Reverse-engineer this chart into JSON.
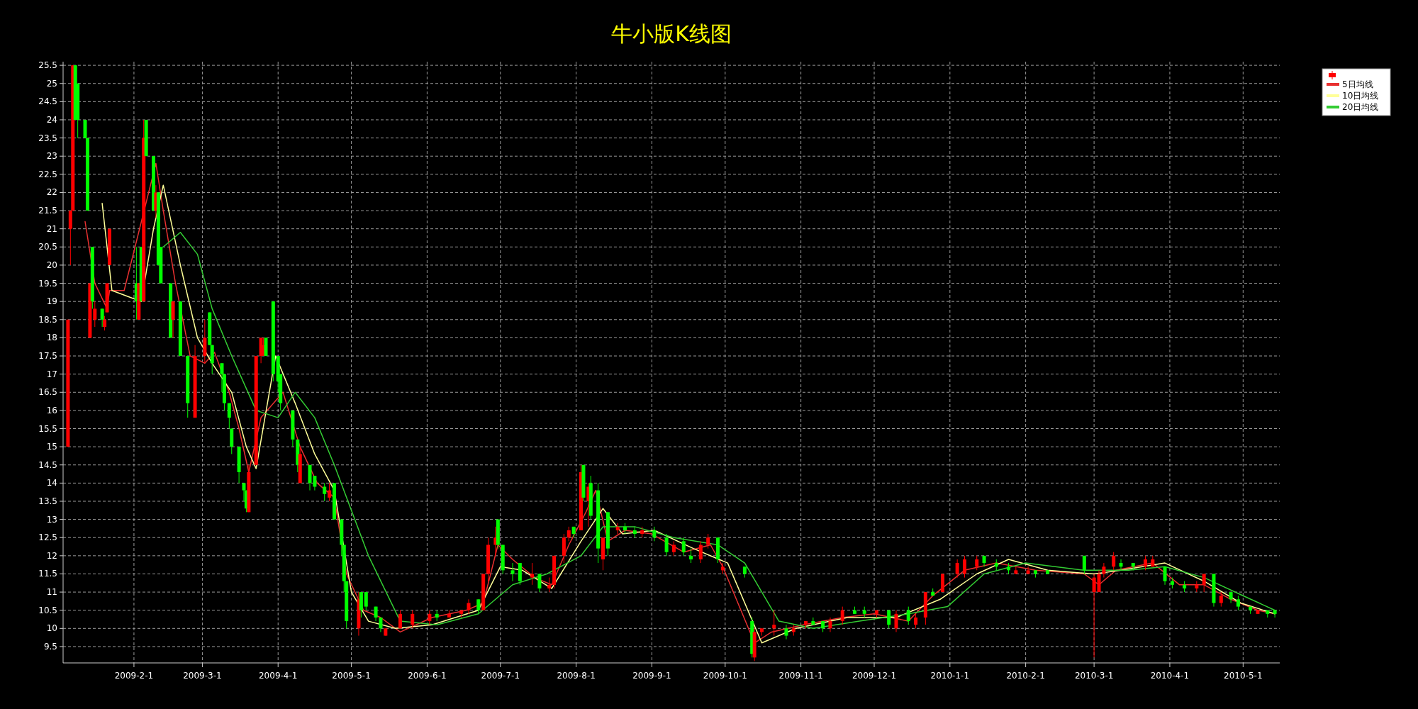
{
  "chart_data": {
    "type": "candlestick",
    "title": "牛小版K线图",
    "x": [
      "2009-01-05",
      "2009-01-06",
      "2009-01-07",
      "2009-01-08",
      "2009-01-09",
      "2009-01-12",
      "2009-01-13",
      "2009-01-14",
      "2009-01-15",
      "2009-01-16",
      "2009-01-19",
      "2009-01-20",
      "2009-01-21",
      "2009-01-22",
      "2009-02-02",
      "2009-02-03",
      "2009-02-04",
      "2009-02-05",
      "2009-02-06",
      "2009-02-09",
      "2009-02-10",
      "2009-02-11",
      "2009-02-12",
      "2009-02-16",
      "2009-02-17",
      "2009-02-20",
      "2009-02-23",
      "2009-02-26",
      "2009-03-02",
      "2009-03-04",
      "2009-03-05",
      "2009-03-09",
      "2009-03-10",
      "2009-03-12",
      "2009-03-13",
      "2009-03-16",
      "2009-03-18",
      "2009-03-19",
      "2009-03-20",
      "2009-03-23",
      "2009-03-25",
      "2009-03-26",
      "2009-03-27",
      "2009-03-30",
      "2009-04-01",
      "2009-04-02",
      "2009-04-07",
      "2009-04-09",
      "2009-04-10",
      "2009-04-14",
      "2009-04-16",
      "2009-04-20",
      "2009-04-22",
      "2009-04-24",
      "2009-04-27",
      "2009-04-28",
      "2009-04-29",
      "2009-05-04",
      "2009-05-05",
      "2009-05-07",
      "2009-05-11",
      "2009-05-13",
      "2009-05-15",
      "2009-05-21",
      "2009-05-26",
      "2009-06-02",
      "2009-06-05",
      "2009-06-10",
      "2009-06-15",
      "2009-06-18",
      "2009-06-22",
      "2009-06-24",
      "2009-06-26",
      "2009-06-29",
      "2009-06-30",
      "2009-07-02",
      "2009-07-06",
      "2009-07-09",
      "2009-07-14",
      "2009-07-17",
      "2009-07-21",
      "2009-07-23",
      "2009-07-27",
      "2009-07-29",
      "2009-07-31",
      "2009-08-03",
      "2009-08-04",
      "2009-08-06",
      "2009-08-07",
      "2009-08-10",
      "2009-08-12",
      "2009-08-14",
      "2009-08-18",
      "2009-08-21",
      "2009-08-25",
      "2009-08-28",
      "2009-09-02",
      "2009-09-07",
      "2009-09-10",
      "2009-09-14",
      "2009-09-17",
      "2009-09-21",
      "2009-09-24",
      "2009-09-28",
      "2009-09-30",
      "2009-10-09",
      "2009-10-12",
      "2009-10-13",
      "2009-10-16",
      "2009-10-21",
      "2009-10-26",
      "2009-10-29",
      "2009-11-03",
      "2009-11-06",
      "2009-11-10",
      "2009-11-13",
      "2009-11-18",
      "2009-11-23",
      "2009-11-27",
      "2009-12-02",
      "2009-12-07",
      "2009-12-10",
      "2009-12-15",
      "2009-12-18",
      "2009-12-22",
      "2009-12-25",
      "2009-12-29",
      "2010-01-04",
      "2010-01-07",
      "2010-01-12",
      "2010-01-15",
      "2010-01-20",
      "2010-01-25",
      "2010-01-28",
      "2010-02-02",
      "2010-02-05",
      "2010-02-10",
      "2010-02-25",
      "2010-03-01",
      "2010-03-03",
      "2010-03-05",
      "2010-03-09",
      "2010-03-12",
      "2010-03-17",
      "2010-03-22",
      "2010-03-25",
      "2010-03-30",
      "2010-04-02",
      "2010-04-07",
      "2010-04-12",
      "2010-04-15",
      "2010-04-19",
      "2010-04-22",
      "2010-04-26",
      "2010-04-29",
      "2010-05-04",
      "2010-05-07",
      "2010-05-11",
      "2010-05-14"
    ],
    "ohlc": [
      [
        15.0,
        18.5,
        15.0,
        18.5
      ],
      [
        21.0,
        21.5,
        20.0,
        21.5
      ],
      [
        21.5,
        25.5,
        21.5,
        25.5
      ],
      [
        25.5,
        25.5,
        24.0,
        24.0
      ],
      [
        25.0,
        25.0,
        23.5,
        24.0
      ],
      [
        24.0,
        24.0,
        23.5,
        23.5
      ],
      [
        23.5,
        23.5,
        21.5,
        21.5
      ],
      [
        18.0,
        19.5,
        18.0,
        19.5
      ],
      [
        20.5,
        20.5,
        18.8,
        19.0
      ],
      [
        18.5,
        19.0,
        18.3,
        18.8
      ],
      [
        18.8,
        18.8,
        18.3,
        18.5
      ],
      [
        18.3,
        18.6,
        18.2,
        18.5
      ],
      [
        18.7,
        19.5,
        18.7,
        19.5
      ],
      [
        20.0,
        21.0,
        20.0,
        21.0
      ],
      [
        19.5,
        20.5,
        18.5,
        19.0
      ],
      [
        18.5,
        19.5,
        18.5,
        19.5
      ],
      [
        20.5,
        20.5,
        19.0,
        19.0
      ],
      [
        19.0,
        24.0,
        19.0,
        23.5
      ],
      [
        24.0,
        24.0,
        23.0,
        23.0
      ],
      [
        23.0,
        23.0,
        21.5,
        21.5
      ],
      [
        21.5,
        22.2,
        21.3,
        22.0
      ],
      [
        22.0,
        22.0,
        20.0,
        20.0
      ],
      [
        20.5,
        20.5,
        19.5,
        19.5
      ],
      [
        19.5,
        19.5,
        18.0,
        18.0
      ],
      [
        18.5,
        19.0,
        18.0,
        19.0
      ],
      [
        19.0,
        19.0,
        17.5,
        17.5
      ],
      [
        17.5,
        17.5,
        15.8,
        16.2
      ],
      [
        15.8,
        17.8,
        15.8,
        17.5
      ],
      [
        17.5,
        18.5,
        17.3,
        18.0
      ],
      [
        18.7,
        18.7,
        17.8,
        17.8
      ],
      [
        17.8,
        17.8,
        17.0,
        17.3
      ],
      [
        17.3,
        17.3,
        16.5,
        17.0
      ],
      [
        17.0,
        17.0,
        16.0,
        16.2
      ],
      [
        16.2,
        16.2,
        15.5,
        15.8
      ],
      [
        15.5,
        15.5,
        14.8,
        15.0
      ],
      [
        15.0,
        15.0,
        14.0,
        14.3
      ],
      [
        14.0,
        14.0,
        13.5,
        13.8
      ],
      [
        13.8,
        13.8,
        13.2,
        13.3
      ],
      [
        13.2,
        14.5,
        13.2,
        14.3
      ],
      [
        14.5,
        17.5,
        14.5,
        17.5
      ],
      [
        17.5,
        18.0,
        17.3,
        18.0
      ],
      [
        17.5,
        18.0,
        17.5,
        17.8
      ],
      [
        18.0,
        18.0,
        17.5,
        17.5
      ],
      [
        19.0,
        19.0,
        16.8,
        17.0
      ],
      [
        17.5,
        17.5,
        16.5,
        16.8
      ],
      [
        17.0,
        17.0,
        16.0,
        16.2
      ],
      [
        16.0,
        16.0,
        15.0,
        15.2
      ],
      [
        15.2,
        15.2,
        14.3,
        14.5
      ],
      [
        14.0,
        15.0,
        14.0,
        14.8
      ],
      [
        14.5,
        14.5,
        13.8,
        14.0
      ],
      [
        14.2,
        14.2,
        13.8,
        13.9
      ],
      [
        13.9,
        14.0,
        13.5,
        13.7
      ],
      [
        13.6,
        14.0,
        13.5,
        13.8
      ],
      [
        14.0,
        14.0,
        13.0,
        13.0
      ],
      [
        13.0,
        13.0,
        12.0,
        12.3
      ],
      [
        12.3,
        12.3,
        11.0,
        11.3
      ],
      [
        11.3,
        11.3,
        10.0,
        10.2
      ],
      [
        10.0,
        11.0,
        9.8,
        10.8
      ],
      [
        11.0,
        11.0,
        10.3,
        10.5
      ],
      [
        11.0,
        11.0,
        10.5,
        10.6
      ],
      [
        10.6,
        10.6,
        10.2,
        10.3
      ],
      [
        10.3,
        10.3,
        9.9,
        10.0
      ],
      [
        9.8,
        10.0,
        9.8,
        10.0
      ],
      [
        10.0,
        10.5,
        10.0,
        10.4
      ],
      [
        10.1,
        10.5,
        10.0,
        10.4
      ],
      [
        10.2,
        10.5,
        10.1,
        10.4
      ],
      [
        10.4,
        10.5,
        10.2,
        10.3
      ],
      [
        10.3,
        10.5,
        10.3,
        10.4
      ],
      [
        10.4,
        10.5,
        10.3,
        10.5
      ],
      [
        10.5,
        10.8,
        10.4,
        10.7
      ],
      [
        10.8,
        10.8,
        10.4,
        10.5
      ],
      [
        10.5,
        11.5,
        10.5,
        11.5
      ],
      [
        11.5,
        12.5,
        11.3,
        12.3
      ],
      [
        12.3,
        12.8,
        12.0,
        12.5
      ],
      [
        13.0,
        13.0,
        12.2,
        12.3
      ],
      [
        12.3,
        12.3,
        11.5,
        11.6
      ],
      [
        11.6,
        11.8,
        11.3,
        11.5
      ],
      [
        11.8,
        11.8,
        11.2,
        11.3
      ],
      [
        11.4,
        11.8,
        11.2,
        11.5
      ],
      [
        11.5,
        11.5,
        11.0,
        11.1
      ],
      [
        11.1,
        11.4,
        11.0,
        11.2
      ],
      [
        11.2,
        12.0,
        11.1,
        12.0
      ],
      [
        12.0,
        12.6,
        11.8,
        12.5
      ],
      [
        12.5,
        12.8,
        12.4,
        12.7
      ],
      [
        12.8,
        12.8,
        12.5,
        12.6
      ],
      [
        12.7,
        14.5,
        12.7,
        14.3
      ],
      [
        14.5,
        14.5,
        13.5,
        13.6
      ],
      [
        13.5,
        14.0,
        12.8,
        13.9
      ],
      [
        14.0,
        14.2,
        13.0,
        13.1
      ],
      [
        13.8,
        14.0,
        11.8,
        12.2
      ],
      [
        11.9,
        12.5,
        11.6,
        12.5
      ],
      [
        13.2,
        13.2,
        12.0,
        12.2
      ],
      [
        12.7,
        12.9,
        12.6,
        12.8
      ],
      [
        12.8,
        12.9,
        12.6,
        12.7
      ],
      [
        12.7,
        12.8,
        12.5,
        12.6
      ],
      [
        12.6,
        12.8,
        12.5,
        12.7
      ],
      [
        12.7,
        12.8,
        12.4,
        12.5
      ],
      [
        12.5,
        12.6,
        12.0,
        12.1
      ],
      [
        12.1,
        12.4,
        12.0,
        12.3
      ],
      [
        12.4,
        12.5,
        12.0,
        12.1
      ],
      [
        12.0,
        12.2,
        11.8,
        11.9
      ],
      [
        11.9,
        12.4,
        11.8,
        12.3
      ],
      [
        12.3,
        12.6,
        12.2,
        12.5
      ],
      [
        12.5,
        12.5,
        11.8,
        11.9
      ],
      [
        11.6,
        11.8,
        11.5,
        11.7
      ],
      [
        11.7,
        11.7,
        11.4,
        11.5
      ],
      [
        10.2,
        10.3,
        9.2,
        9.3
      ],
      [
        9.2,
        10.0,
        9.1,
        9.9
      ],
      [
        9.9,
        10.0,
        9.8,
        10.0
      ],
      [
        10.0,
        10.5,
        9.8,
        10.1
      ],
      [
        10.0,
        10.1,
        9.7,
        9.8
      ],
      [
        9.9,
        10.1,
        9.8,
        10.0
      ],
      [
        10.1,
        10.2,
        10.0,
        10.2
      ],
      [
        10.2,
        10.3,
        10.1,
        10.1
      ],
      [
        10.2,
        10.2,
        9.9,
        10.0
      ],
      [
        10.0,
        10.3,
        9.9,
        10.2
      ],
      [
        10.2,
        10.6,
        10.1,
        10.5
      ],
      [
        10.5,
        10.6,
        10.4,
        10.4
      ],
      [
        10.5,
        10.6,
        10.3,
        10.4
      ],
      [
        10.4,
        10.5,
        10.3,
        10.5
      ],
      [
        10.5,
        10.5,
        10.0,
        10.1
      ],
      [
        10.0,
        10.5,
        9.9,
        10.4
      ],
      [
        10.5,
        10.6,
        10.1,
        10.2
      ],
      [
        10.1,
        10.4,
        10.0,
        10.3
      ],
      [
        10.3,
        11.0,
        10.1,
        11.0
      ],
      [
        11.0,
        11.1,
        10.9,
        10.9
      ],
      [
        11.0,
        11.5,
        11.0,
        11.5
      ],
      [
        11.5,
        11.9,
        11.4,
        11.8
      ],
      [
        11.5,
        12.0,
        11.4,
        11.9
      ],
      [
        11.7,
        12.0,
        11.6,
        11.9
      ],
      [
        12.0,
        12.0,
        11.7,
        11.8
      ],
      [
        11.8,
        11.9,
        11.6,
        11.7
      ],
      [
        11.7,
        11.8,
        11.5,
        11.6
      ],
      [
        11.5,
        11.7,
        11.5,
        11.6
      ],
      [
        11.5,
        11.7,
        11.5,
        11.6
      ],
      [
        11.6,
        11.6,
        11.4,
        11.5
      ],
      [
        11.6,
        11.6,
        11.5,
        11.5
      ],
      [
        12.0,
        12.0,
        11.5,
        11.6
      ],
      [
        11.0,
        11.5,
        9.2,
        11.4
      ],
      [
        11.0,
        11.6,
        11.0,
        11.5
      ],
      [
        11.5,
        11.8,
        11.4,
        11.7
      ],
      [
        11.7,
        12.1,
        11.6,
        12.0
      ],
      [
        11.8,
        11.9,
        11.6,
        11.7
      ],
      [
        11.8,
        11.8,
        11.6,
        11.7
      ],
      [
        11.7,
        12.0,
        11.6,
        11.9
      ],
      [
        11.7,
        12.0,
        11.7,
        11.9
      ],
      [
        11.7,
        11.7,
        11.2,
        11.3
      ],
      [
        11.3,
        11.4,
        11.1,
        11.2
      ],
      [
        11.2,
        11.3,
        11.0,
        11.1
      ],
      [
        11.1,
        11.3,
        11.0,
        11.2
      ],
      [
        11.2,
        11.5,
        11.0,
        11.5
      ],
      [
        11.5,
        11.5,
        10.6,
        10.7
      ],
      [
        10.7,
        11.0,
        10.6,
        10.9
      ],
      [
        11.0,
        11.0,
        10.7,
        10.8
      ],
      [
        10.8,
        10.9,
        10.5,
        10.6
      ],
      [
        10.6,
        10.6,
        10.4,
        10.5
      ],
      [
        10.4,
        10.5,
        10.4,
        10.5
      ],
      [
        10.5,
        10.5,
        10.3,
        10.4
      ],
      [
        10.5,
        10.5,
        10.3,
        10.4
      ]
    ],
    "colors": [
      "#ff0000",
      "#ff0000",
      "#ff0000",
      "#00ff00",
      "#00ff00",
      "#00ff00",
      "#00ff00",
      "#ff0000",
      "#00ff00",
      "#ff0000",
      "#00ff00",
      "#ff0000",
      "#ff0000",
      "#ff0000",
      "#00ff00",
      "#ff0000",
      "#00ff00",
      "#ff0000",
      "#00ff00",
      "#00ff00",
      "#ff0000",
      "#00ff00",
      "#00ff00",
      "#00ff00",
      "#ff0000",
      "#00ff00",
      "#00ff00",
      "#ff0000",
      "#ff0000",
      "#00ff00",
      "#00ff00",
      "#00ff00",
      "#00ff00",
      "#00ff00",
      "#00ff00",
      "#00ff00",
      "#00ff00",
      "#00ff00",
      "#ff0000",
      "#ff0000",
      "#ff0000",
      "#ff0000",
      "#00ff00",
      "#00ff00",
      "#00ff00",
      "#00ff00",
      "#00ff00",
      "#00ff00",
      "#ff0000",
      "#00ff00",
      "#00ff00",
      "#00ff00",
      "#ff0000",
      "#00ff00",
      "#00ff00",
      "#00ff00",
      "#00ff00",
      "#ff0000",
      "#00ff00",
      "#00ff00",
      "#00ff00",
      "#00ff00",
      "#ff0000",
      "#ff0000",
      "#ff0000",
      "#ff0000",
      "#00ff00",
      "#ff0000",
      "#ff0000",
      "#ff0000",
      "#00ff00",
      "#ff0000",
      "#ff0000",
      "#ff0000",
      "#00ff00",
      "#00ff00",
      "#00ff00",
      "#00ff00",
      "#ff0000",
      "#00ff00",
      "#ff0000",
      "#ff0000",
      "#ff0000",
      "#ff0000",
      "#00ff00",
      "#ff0000",
      "#00ff00",
      "#ff0000",
      "#00ff00",
      "#00ff00",
      "#ff0000",
      "#00ff00",
      "#ff0000",
      "#00ff00",
      "#00ff00",
      "#ff0000",
      "#00ff00",
      "#00ff00",
      "#ff0000",
      "#00ff00",
      "#00ff00",
      "#ff0000",
      "#ff0000",
      "#00ff00",
      "#ff0000",
      "#00ff00",
      "#00ff00",
      "#ff0000",
      "#ff0000",
      "#ff0000",
      "#00ff00",
      "#ff0000",
      "#ff0000",
      "#00ff00",
      "#00ff00",
      "#ff0000",
      "#ff0000",
      "#00ff00",
      "#00ff00",
      "#ff0000",
      "#00ff00",
      "#ff0000",
      "#00ff00",
      "#ff0000",
      "#ff0000",
      "#00ff00",
      "#ff0000",
      "#ff0000",
      "#ff0000",
      "#ff0000",
      "#00ff00",
      "#00ff00",
      "#00ff00",
      "#ff0000",
      "#ff0000",
      "#00ff00",
      "#00ff00",
      "#00ff00",
      "#ff0000",
      "#ff0000",
      "#ff0000",
      "#ff0000",
      "#00ff00",
      "#00ff00",
      "#ff0000",
      "#ff0000",
      "#00ff00",
      "#00ff00",
      "#00ff00",
      "#ff0000",
      "#ff0000",
      "#00ff00",
      "#ff0000",
      "#00ff00",
      "#00ff00",
      "#00ff00",
      "#ff0000",
      "#00ff00",
      "#00ff00"
    ],
    "series": [
      {
        "name": "5日均线",
        "type": "line",
        "color": "#e83030",
        "x": [
          "2009-01-12",
          "2009-01-16",
          "2009-01-21",
          "2009-01-22",
          "2009-01-28",
          "2009-02-10",
          "2009-02-13",
          "2009-02-18",
          "2009-02-24",
          "2009-03-02",
          "2009-03-06",
          "2009-03-12",
          "2009-03-16",
          "2009-03-20",
          "2009-03-25",
          "2009-04-03",
          "2009-04-10",
          "2009-04-17",
          "2009-04-24",
          "2009-04-29",
          "2009-05-06",
          "2009-05-13",
          "2009-05-21",
          "2009-06-03",
          "2009-06-17",
          "2009-06-24",
          "2009-06-30",
          "2009-07-06",
          "2009-07-15",
          "2009-07-22",
          "2009-07-29",
          "2009-08-05",
          "2009-08-09",
          "2009-08-14",
          "2009-08-21",
          "2009-09-01",
          "2009-09-14",
          "2009-09-25",
          "2009-09-30",
          "2009-10-13",
          "2009-10-20",
          "2009-11-02",
          "2009-11-18",
          "2009-12-01",
          "2009-12-15",
          "2009-12-25",
          "2010-01-07",
          "2010-01-20",
          "2010-02-05",
          "2010-02-25",
          "2010-03-03",
          "2010-03-10",
          "2010-03-25",
          "2010-04-05",
          "2010-04-15",
          "2010-04-26",
          "2010-05-07",
          "2010-05-14"
        ],
        "values": [
          21.2,
          19.5,
          18.8,
          19.3,
          19.3,
          22.8,
          21.5,
          19.5,
          17.5,
          17.3,
          17.6,
          16.5,
          15.5,
          14.3,
          15.8,
          16.5,
          15.0,
          14.0,
          13.6,
          11.5,
          10.5,
          10.3,
          9.9,
          10.3,
          10.5,
          10.7,
          12.3,
          11.9,
          11.4,
          11.2,
          12.3,
          13.2,
          13.8,
          12.4,
          12.7,
          12.6,
          12.1,
          12.3,
          11.7,
          9.6,
          9.9,
          10.1,
          10.3,
          10.4,
          10.2,
          10.9,
          11.6,
          11.8,
          11.6,
          11.5,
          11.2,
          11.6,
          11.8,
          11.2,
          11.2,
          10.8,
          10.5,
          10.4
        ]
      },
      {
        "name": "10日均线",
        "type": "line",
        "color": "#ffff99",
        "x": [
          "2009-01-19",
          "2009-01-23",
          "2009-02-04",
          "2009-02-09",
          "2009-02-13",
          "2009-02-20",
          "2009-02-27",
          "2009-03-05",
          "2009-03-13",
          "2009-03-19",
          "2009-03-23",
          "2009-03-31",
          "2009-04-08",
          "2009-04-16",
          "2009-04-24",
          "2009-05-01",
          "2009-05-08",
          "2009-05-19",
          "2009-06-03",
          "2009-06-22",
          "2009-07-01",
          "2009-07-10",
          "2009-07-22",
          "2009-08-03",
          "2009-08-12",
          "2009-08-20",
          "2009-09-02",
          "2009-09-18",
          "2009-10-02",
          "2009-10-16",
          "2009-10-30",
          "2009-11-20",
          "2009-12-10",
          "2009-12-28",
          "2010-01-12",
          "2010-01-25",
          "2010-02-10",
          "2010-03-01",
          "2010-03-12",
          "2010-03-30",
          "2010-04-15",
          "2010-04-30",
          "2010-05-14"
        ],
        "values": [
          21.7,
          19.3,
          19.0,
          21.0,
          22.2,
          20.0,
          18.0,
          17.3,
          16.5,
          15.0,
          14.4,
          17.5,
          16.2,
          14.8,
          13.8,
          11.0,
          10.2,
          10.0,
          10.1,
          10.5,
          11.7,
          11.6,
          11.1,
          12.4,
          13.3,
          12.6,
          12.7,
          12.2,
          11.8,
          9.6,
          10.0,
          10.3,
          10.3,
          10.8,
          11.5,
          11.9,
          11.6,
          11.5,
          11.6,
          11.8,
          11.3,
          10.7,
          10.4
        ]
      },
      {
        "name": "20日均线",
        "type": "line",
        "color": "#33cc33",
        "x": [
          "2009-02-13",
          "2009-02-20",
          "2009-02-27",
          "2009-03-05",
          "2009-03-13",
          "2009-03-23",
          "2009-04-01",
          "2009-04-08",
          "2009-04-16",
          "2009-04-24",
          "2009-05-08",
          "2009-05-21",
          "2009-06-05",
          "2009-06-22",
          "2009-07-06",
          "2009-07-20",
          "2009-08-03",
          "2009-08-12",
          "2009-08-25",
          "2009-09-10",
          "2009-09-28",
          "2009-10-09",
          "2009-10-23",
          "2009-11-06",
          "2009-11-25",
          "2009-12-15",
          "2009-12-31",
          "2010-01-15",
          "2010-02-01",
          "2010-02-25",
          "2010-03-15",
          "2010-03-30",
          "2010-04-15",
          "2010-05-01",
          "2010-05-14"
        ],
        "values": [
          20.5,
          20.9,
          20.3,
          18.8,
          17.5,
          16.0,
          15.8,
          16.5,
          15.8,
          14.5,
          12.0,
          10.2,
          10.1,
          10.4,
          11.2,
          11.5,
          12.0,
          12.8,
          12.8,
          12.5,
          12.3,
          11.8,
          10.2,
          10.0,
          10.2,
          10.4,
          10.6,
          11.5,
          11.8,
          11.6,
          11.6,
          11.7,
          11.4,
          10.9,
          10.5
        ]
      }
    ],
    "xlim": [
      "2009-01-03",
      "2010-05-16"
    ],
    "ylim": [
      9.05,
      25.6
    ],
    "xticks": [
      {
        "value": "2009-02-01",
        "label": "2009-2-1"
      },
      {
        "value": "2009-03-01",
        "label": "2009-3-1"
      },
      {
        "value": "2009-04-01",
        "label": "2009-4-1"
      },
      {
        "value": "2009-05-01",
        "label": "2009-5-1"
      },
      {
        "value": "2009-06-01",
        "label": "2009-6-1"
      },
      {
        "value": "2009-07-01",
        "label": "2009-7-1"
      },
      {
        "value": "2009-08-01",
        "label": "2009-8-1"
      },
      {
        "value": "2009-09-01",
        "label": "2009-9-1"
      },
      {
        "value": "2009-10-01",
        "label": "2009-10-1"
      },
      {
        "value": "2009-11-01",
        "label": "2009-11-1"
      },
      {
        "value": "2009-12-01",
        "label": "2009-12-1"
      },
      {
        "value": "2010-01-01",
        "label": "2010-1-1"
      },
      {
        "value": "2010-02-01",
        "label": "2010-2-1"
      },
      {
        "value": "2010-03-01",
        "label": "2010-3-1"
      },
      {
        "value": "2010-04-01",
        "label": "2010-4-1"
      },
      {
        "value": "2010-05-01",
        "label": "2010-5-1"
      }
    ],
    "yticks": [
      9.5,
      10,
      10.5,
      11,
      11.5,
      12,
      12.5,
      13,
      13.5,
      14,
      14.5,
      15,
      15.5,
      16,
      16.5,
      17,
      17.5,
      18,
      18.5,
      19,
      19.5,
      20,
      20.5,
      21,
      21.5,
      22,
      22.5,
      23,
      23.5,
      24,
      24.5,
      25,
      25.5
    ],
    "grid": true,
    "legend": "top right"
  }
}
